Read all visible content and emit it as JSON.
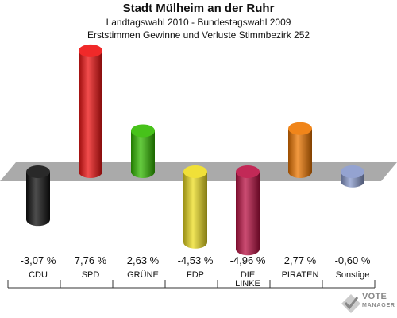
{
  "title": "Stadt Mülheim an der Ruhr",
  "subtitle1": "Landtagswahl 2010 - Bundestagswahl 2009",
  "subtitle2": "Erststimmen Gewinne und Verluste Stimmbezirk 252",
  "logo": {
    "name_a": "VOTE",
    "name_b": "MANAGER",
    "icon": "checkmark-ballot-icon"
  },
  "chart_data": {
    "type": "bar",
    "title": "Stadt Mülheim an der Ruhr",
    "categories": [
      "CDU",
      "SPD",
      "GRÜNE",
      "FDP",
      "DIE LINKE",
      "PIRATEN",
      "Sonstige"
    ],
    "category_lines": [
      [
        "CDU"
      ],
      [
        "SPD"
      ],
      [
        "GRÜNE"
      ],
      [
        "FDP"
      ],
      [
        "DIE",
        "LINKE"
      ],
      [
        "PIRATEN"
      ],
      [
        "Sonstige"
      ]
    ],
    "values": [
      -3.07,
      7.76,
      2.63,
      -4.53,
      -4.96,
      2.77,
      -0.6
    ],
    "value_labels": [
      "-3,07 %",
      "7,76 %",
      "2,63 %",
      "-4,53 %",
      "-4,96 %",
      "2,77 %",
      "-0,60 %"
    ],
    "colors": [
      "#111111",
      "#ee1111",
      "#33bb00",
      "#eedd22",
      "#bb1144",
      "#ee7700",
      "#8899cc"
    ],
    "baseline_color": "#aaaaaa",
    "ylim": [
      -6,
      9
    ],
    "grid": false,
    "legend": "none"
  }
}
